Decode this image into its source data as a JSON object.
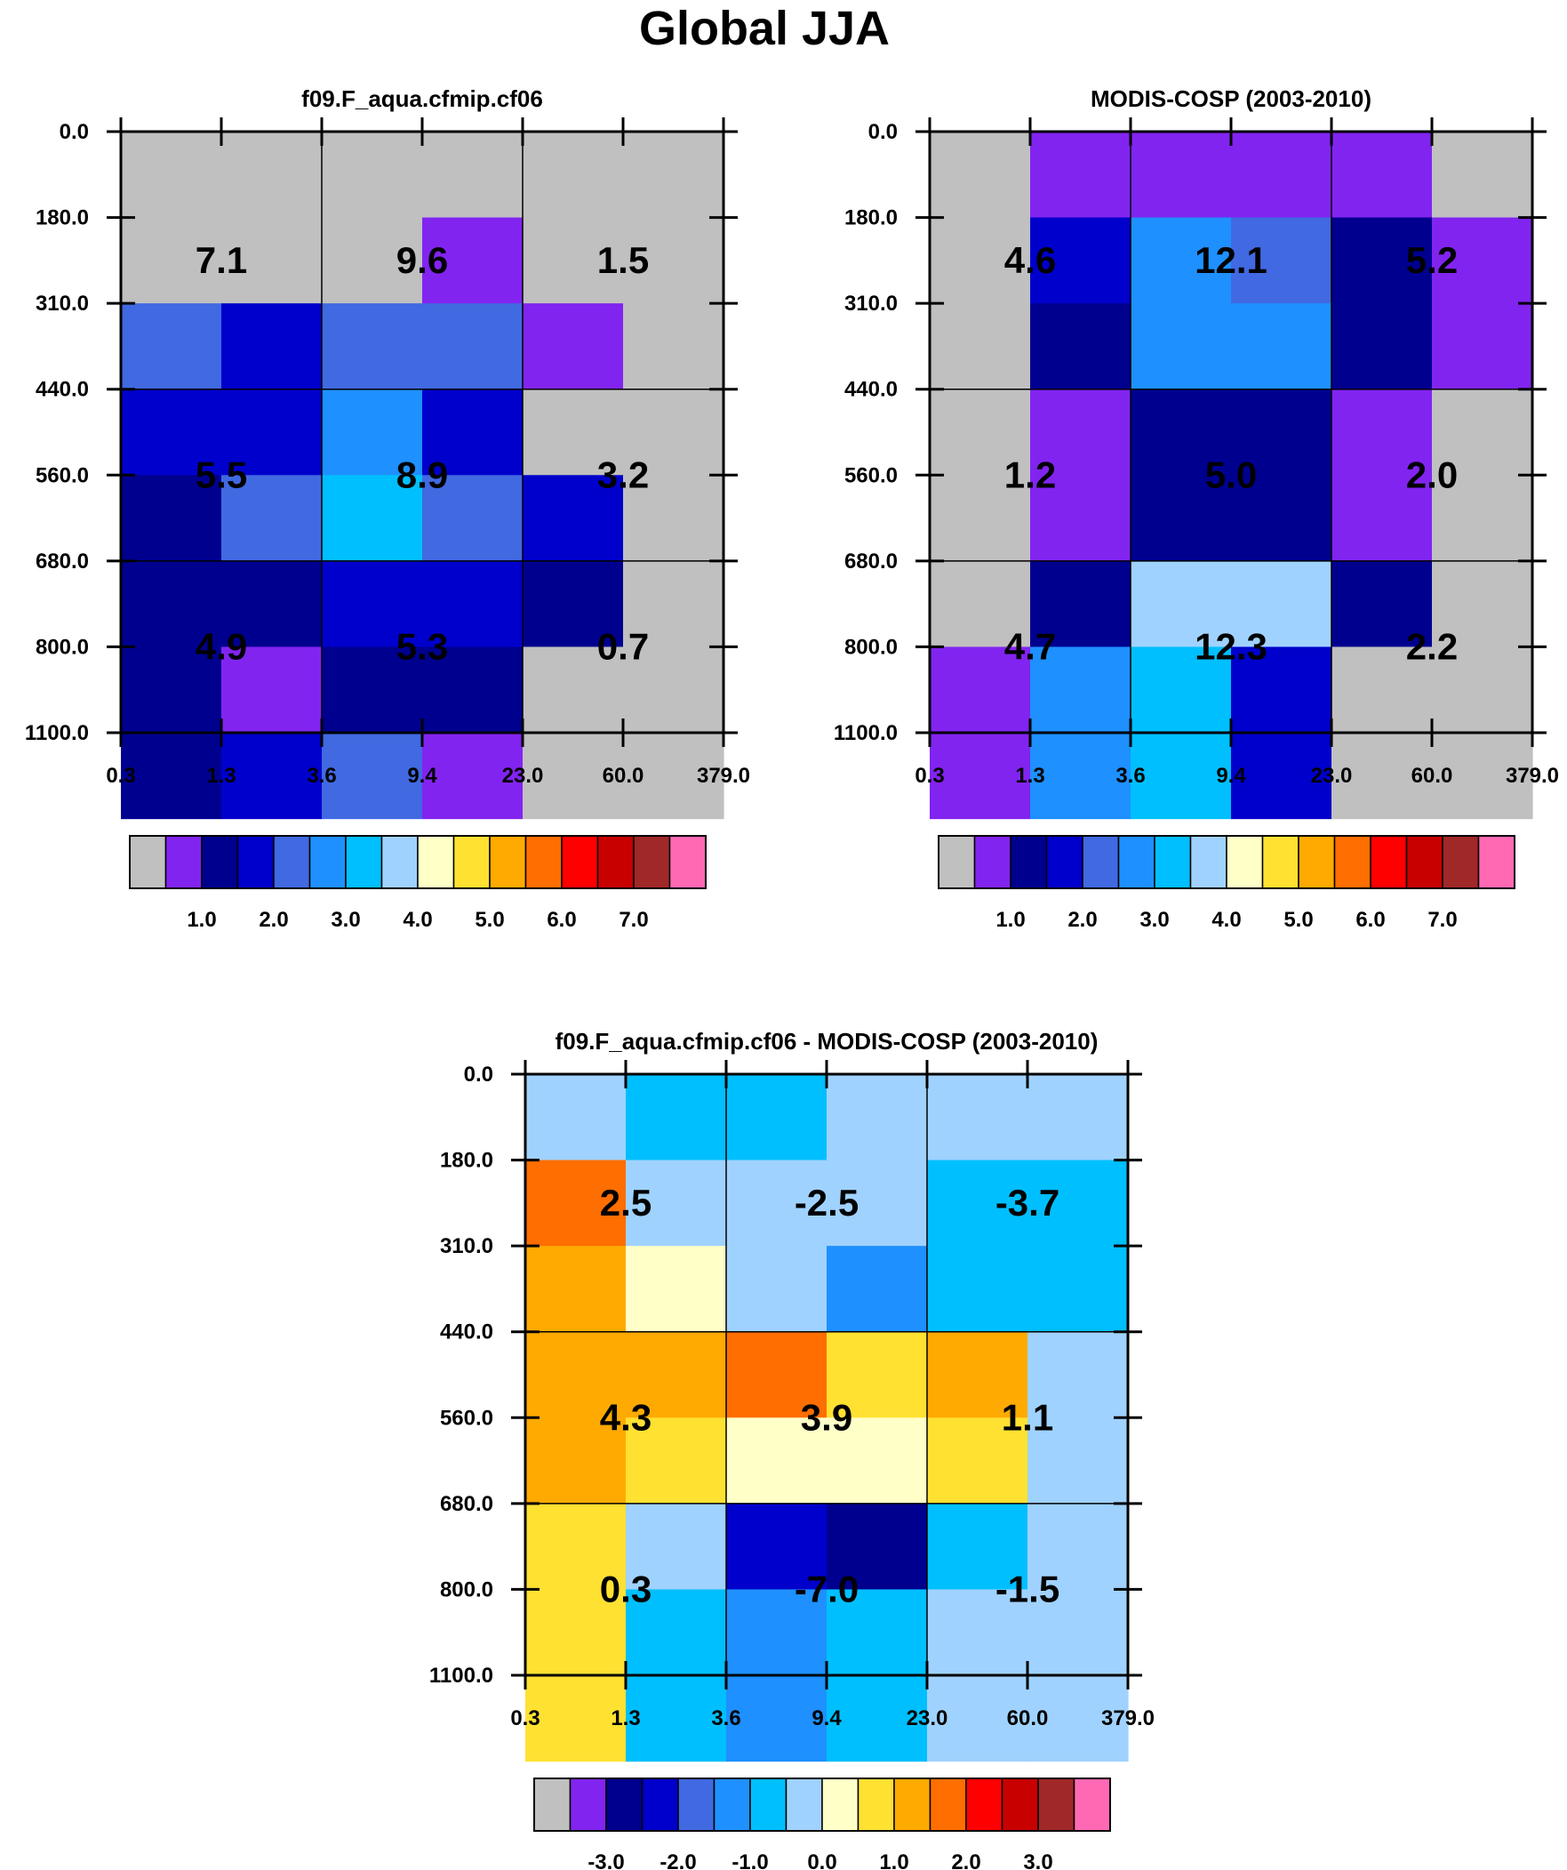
{
  "title": "Global JJA",
  "colors": {
    "palette": [
      "#c0c0c0",
      "#8224f0",
      "#00008f",
      "#0000cc",
      "#4169e1",
      "#1e90ff",
      "#00bfff",
      "#a0d2ff",
      "#ffffc8",
      "#ffe132",
      "#ffaa00",
      "#ff6e00",
      "#ff0000",
      "#c80000",
      "#a02828",
      "#ff69b4"
    ],
    "grid_line": "#000000"
  },
  "chart_data": [
    {
      "type": "heatmap",
      "title": "f09.F_aqua.cfmip.cf06",
      "xlabel": "",
      "ylabel": "",
      "x_ticks": [
        "0.3",
        "1.3",
        "3.6",
        "9.4",
        "23.0",
        "60.0",
        "379.0"
      ],
      "y_ticks": [
        "0.0",
        "180.0",
        "310.0",
        "440.0",
        "560.0",
        "680.0",
        "800.0",
        "1100.0"
      ],
      "cells": [
        [
          0,
          0,
          0,
          0,
          0,
          0
        ],
        [
          0,
          0,
          0,
          1,
          0,
          0
        ],
        [
          4,
          3,
          4,
          4,
          1,
          0
        ],
        [
          3,
          3,
          5,
          3,
          0,
          0
        ],
        [
          2,
          4,
          6,
          4,
          3,
          0
        ],
        [
          2,
          2,
          3,
          3,
          2,
          0
        ],
        [
          2,
          1,
          2,
          2,
          0,
          0
        ],
        [
          2,
          3,
          4,
          1,
          0,
          0
        ]
      ],
      "block_labels": [
        [
          "7.1",
          "9.6",
          "1.5"
        ],
        [
          "5.5",
          "8.9",
          "3.2"
        ],
        [
          "4.9",
          "5.3",
          "0.7"
        ]
      ],
      "colorbar": {
        "labels": [
          "1.0",
          "2.0",
          "3.0",
          "4.0",
          "5.0",
          "6.0",
          "7.0"
        ],
        "first_label_box": 1
      }
    },
    {
      "type": "heatmap",
      "title": "MODIS-COSP (2003-2010)",
      "xlabel": "",
      "ylabel": "",
      "x_ticks": [
        "0.3",
        "1.3",
        "3.6",
        "9.4",
        "23.0",
        "60.0",
        "379.0"
      ],
      "y_ticks": [
        "0.0",
        "180.0",
        "310.0",
        "440.0",
        "560.0",
        "680.0",
        "800.0",
        "1100.0"
      ],
      "cells": [
        [
          0,
          1,
          1,
          1,
          1,
          0
        ],
        [
          0,
          3,
          5,
          4,
          2,
          1
        ],
        [
          0,
          2,
          5,
          5,
          2,
          1
        ],
        [
          0,
          1,
          2,
          2,
          1,
          0
        ],
        [
          0,
          1,
          2,
          2,
          1,
          0
        ],
        [
          0,
          2,
          7,
          7,
          2,
          0
        ],
        [
          1,
          5,
          6,
          3,
          0,
          0
        ],
        [
          1,
          5,
          6,
          3,
          0,
          0
        ]
      ],
      "block_labels": [
        [
          "4.6",
          "12.1",
          "5.2"
        ],
        [
          "1.2",
          "5.0",
          "2.0"
        ],
        [
          "4.7",
          "12.3",
          "2.2"
        ]
      ],
      "colorbar": {
        "labels": [
          "1.0",
          "2.0",
          "3.0",
          "4.0",
          "5.0",
          "6.0",
          "7.0"
        ],
        "first_label_box": 1
      }
    },
    {
      "type": "heatmap",
      "title": "f09.F_aqua.cfmip.cf06 - MODIS-COSP (2003-2010)",
      "xlabel": "",
      "ylabel": "",
      "x_ticks": [
        "0.3",
        "1.3",
        "3.6",
        "9.4",
        "23.0",
        "60.0",
        "379.0"
      ],
      "y_ticks": [
        "0.0",
        "180.0",
        "310.0",
        "440.0",
        "560.0",
        "680.0",
        "800.0",
        "1100.0"
      ],
      "cells": [
        [
          7,
          6,
          6,
          7,
          7,
          7
        ],
        [
          11,
          7,
          7,
          7,
          6,
          6
        ],
        [
          10,
          8,
          7,
          5,
          6,
          6
        ],
        [
          10,
          10,
          11,
          9,
          10,
          7
        ],
        [
          10,
          9,
          8,
          8,
          9,
          7
        ],
        [
          9,
          7,
          3,
          2,
          6,
          7
        ],
        [
          9,
          6,
          5,
          6,
          7,
          7
        ],
        [
          9,
          6,
          5,
          6,
          7,
          7
        ]
      ],
      "block_labels": [
        [
          "2.5",
          "-2.5",
          "-3.7"
        ],
        [
          "4.3",
          "3.9",
          "1.1"
        ],
        [
          "0.3",
          "-7.0",
          "-1.5"
        ]
      ],
      "colorbar": {
        "labels": [
          "-3.0",
          "-2.0",
          "-1.0",
          "0.0",
          "1.0",
          "2.0",
          "3.0"
        ],
        "first_label_box": 1
      }
    }
  ]
}
